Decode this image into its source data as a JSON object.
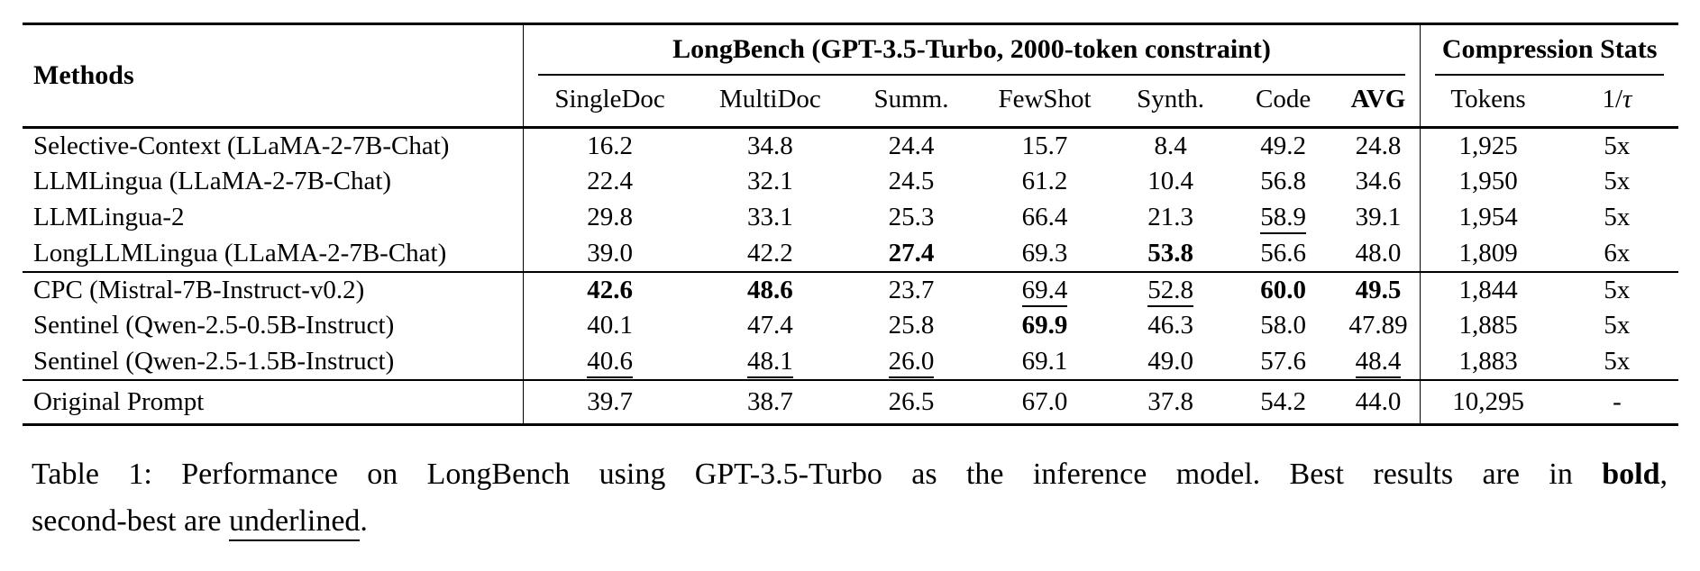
{
  "table": {
    "header": {
      "methods": "Methods",
      "longbench_group": "LongBench (GPT-3.5-Turbo, 2000-token constraint)",
      "compression_group": "Compression Stats",
      "columns": [
        {
          "label": "SingleDoc"
        },
        {
          "label": "MultiDoc"
        },
        {
          "label": "Summ."
        },
        {
          "label": "FewShot"
        },
        {
          "label": "Synth."
        },
        {
          "label": "Code"
        },
        {
          "label": "AVG",
          "bold": true
        },
        {
          "label": "Tokens"
        },
        {
          "label_prefix": "1/",
          "label_symbol": "τ"
        }
      ]
    },
    "sections": [
      {
        "name": "baseline-methods",
        "rows": [
          {
            "method": "Selective-Context (LLaMA-2-7B-Chat)",
            "cells": [
              {
                "v": "16.2"
              },
              {
                "v": "34.8"
              },
              {
                "v": "24.4"
              },
              {
                "v": "15.7"
              },
              {
                "v": "8.4"
              },
              {
                "v": "49.2"
              },
              {
                "v": "24.8"
              },
              {
                "v": "1,925"
              },
              {
                "v": "5x"
              }
            ]
          },
          {
            "method": "LLMLingua (LLaMA-2-7B-Chat)",
            "cells": [
              {
                "v": "22.4"
              },
              {
                "v": "32.1"
              },
              {
                "v": "24.5"
              },
              {
                "v": "61.2"
              },
              {
                "v": "10.4"
              },
              {
                "v": "56.8"
              },
              {
                "v": "34.6"
              },
              {
                "v": "1,950"
              },
              {
                "v": "5x"
              }
            ]
          },
          {
            "method": "LLMLingua-2",
            "cells": [
              {
                "v": "29.8"
              },
              {
                "v": "33.1"
              },
              {
                "v": "25.3"
              },
              {
                "v": "66.4"
              },
              {
                "v": "21.3"
              },
              {
                "v": "58.9",
                "u": true
              },
              {
                "v": "39.1"
              },
              {
                "v": "1,954"
              },
              {
                "v": "5x"
              }
            ]
          },
          {
            "method": "LongLLMLingua (LLaMA-2-7B-Chat)",
            "cells": [
              {
                "v": "39.0"
              },
              {
                "v": "42.2"
              },
              {
                "v": "27.4",
                "b": true
              },
              {
                "v": "69.3"
              },
              {
                "v": "53.8",
                "b": true
              },
              {
                "v": "56.6"
              },
              {
                "v": "48.0"
              },
              {
                "v": "1,809"
              },
              {
                "v": "6x"
              }
            ]
          }
        ]
      },
      {
        "name": "proposed-methods",
        "rows": [
          {
            "method": "CPC (Mistral-7B-Instruct-v0.2)",
            "cells": [
              {
                "v": "42.6",
                "b": true
              },
              {
                "v": "48.6",
                "b": true
              },
              {
                "v": "23.7"
              },
              {
                "v": "69.4",
                "u": true
              },
              {
                "v": "52.8",
                "u": true
              },
              {
                "v": "60.0",
                "b": true
              },
              {
                "v": "49.5",
                "b": true
              },
              {
                "v": "1,844"
              },
              {
                "v": "5x"
              }
            ]
          },
          {
            "method": "Sentinel (Qwen-2.5-0.5B-Instruct)",
            "cells": [
              {
                "v": "40.1"
              },
              {
                "v": "47.4"
              },
              {
                "v": "25.8"
              },
              {
                "v": "69.9",
                "b": true
              },
              {
                "v": "46.3"
              },
              {
                "v": "58.0"
              },
              {
                "v": "47.89"
              },
              {
                "v": "1,885"
              },
              {
                "v": "5x"
              }
            ]
          },
          {
            "method": "Sentinel (Qwen-2.5-1.5B-Instruct)",
            "cells": [
              {
                "v": "40.6",
                "u": true
              },
              {
                "v": "48.1",
                "u": true
              },
              {
                "v": "26.0",
                "u": true
              },
              {
                "v": "69.1"
              },
              {
                "v": "49.0"
              },
              {
                "v": "57.6"
              },
              {
                "v": "48.4",
                "u": true
              },
              {
                "v": "1,883"
              },
              {
                "v": "5x"
              }
            ]
          }
        ]
      },
      {
        "name": "original-prompt",
        "rows": [
          {
            "method": "Original Prompt",
            "cells": [
              {
                "v": "39.7"
              },
              {
                "v": "38.7"
              },
              {
                "v": "26.5"
              },
              {
                "v": "67.0"
              },
              {
                "v": "37.8"
              },
              {
                "v": "54.2"
              },
              {
                "v": "44.0"
              },
              {
                "v": "10,295"
              },
              {
                "v": "-"
              }
            ]
          }
        ]
      }
    ]
  },
  "caption": {
    "line1": [
      {
        "t": "Table 1:  Performance on LongBench using GPT-3.5-Turbo as the inference model.  Best results are in "
      },
      {
        "t": "bold",
        "b": true
      },
      {
        "t": ","
      }
    ],
    "line2": [
      {
        "t": "second-best are "
      },
      {
        "t": "underlined",
        "u": true
      },
      {
        "t": "."
      }
    ]
  }
}
